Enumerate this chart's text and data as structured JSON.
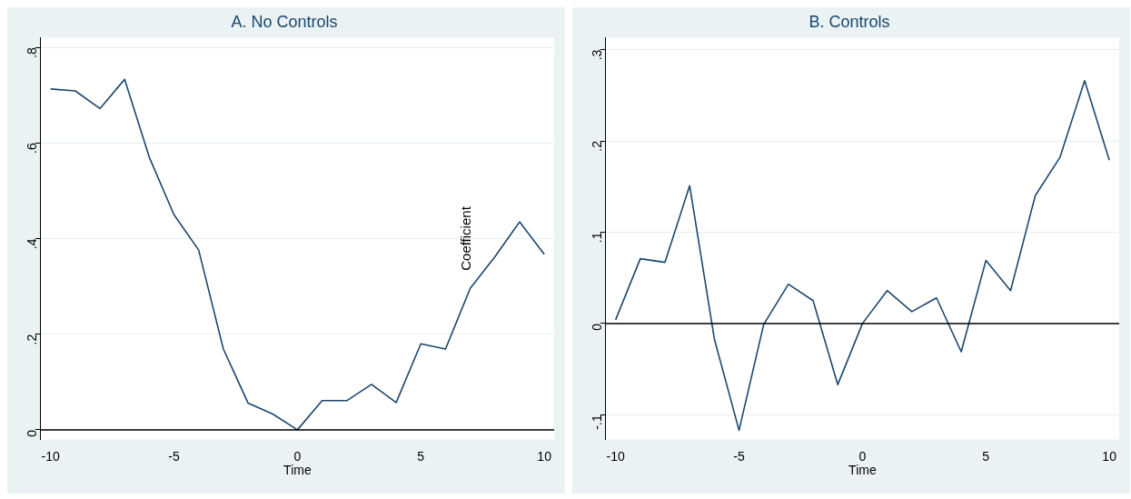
{
  "chart_data": [
    {
      "type": "line",
      "title": "A. No Controls",
      "xlabel": "Time",
      "x": [
        -10,
        -9,
        -8,
        -7,
        -6,
        -5,
        -4,
        -3,
        -2,
        -1,
        0,
        1,
        2,
        3,
        4,
        5,
        6,
        7,
        8,
        9,
        10
      ],
      "series": [
        {
          "color": "#1a476f",
          "values": [
            0.713,
            0.709,
            0.672,
            0.733,
            0.57,
            0.45,
            0.376,
            0.169,
            0.056,
            0.033,
            0,
            0.061,
            0.061,
            0.095,
            0.057,
            0.18,
            0.169,
            0.296,
            0.362,
            0.435,
            0.367
          ]
        }
      ],
      "xlim": [
        -10.4,
        10.4
      ],
      "xticks": [
        -10,
        -5,
        0,
        5,
        10
      ],
      "ylim": [
        -0.02,
        0.82
      ],
      "yticks": [
        {
          "value": 0,
          "label": "0"
        },
        {
          "value": 0.2,
          "label": ".2"
        },
        {
          "value": 0.4,
          "label": ".4"
        },
        {
          "value": 0.6,
          "label": ".6"
        },
        {
          "value": 0.8,
          "label": ".8"
        }
      ],
      "grid": "y",
      "legend": false,
      "marker": "none",
      "line_style": "solid",
      "ref_lines": [
        {
          "axis": "y",
          "value": 0,
          "color": "#000000"
        }
      ],
      "annotations": [
        "Coefficient"
      ]
    },
    {
      "type": "line",
      "title": "B. Controls",
      "xlabel": "Time",
      "x": [
        -10,
        -9,
        -8,
        -7,
        -6,
        -5,
        -4,
        -3,
        -2,
        -1,
        0,
        1,
        2,
        3,
        4,
        5,
        6,
        7,
        8,
        9,
        10
      ],
      "series": [
        {
          "color": "#1a476f",
          "values": [
            0.004,
            0.071,
            0.067,
            0.151,
            -0.017,
            -0.117,
            -0.001,
            0.043,
            0.025,
            -0.067,
            0,
            0.036,
            0.013,
            0.028,
            -0.031,
            0.069,
            0.036,
            0.14,
            0.182,
            0.266,
            0.179
          ]
        }
      ],
      "xlim": [
        -10.4,
        10.4
      ],
      "xticks": [
        -10,
        -5,
        0,
        5,
        10
      ],
      "ylim": [
        -0.127,
        0.313
      ],
      "yticks": [
        {
          "value": -0.1,
          "label": "-.1"
        },
        {
          "value": 0,
          "label": "0"
        },
        {
          "value": 0.1,
          "label": ".1"
        },
        {
          "value": 0.2,
          "label": ".2"
        },
        {
          "value": 0.3,
          "label": ".3"
        }
      ],
      "grid": "y",
      "legend": false,
      "marker": "none",
      "line_style": "solid",
      "ref_lines": [
        {
          "axis": "y",
          "value": 0,
          "color": "#000000"
        }
      ]
    }
  ]
}
